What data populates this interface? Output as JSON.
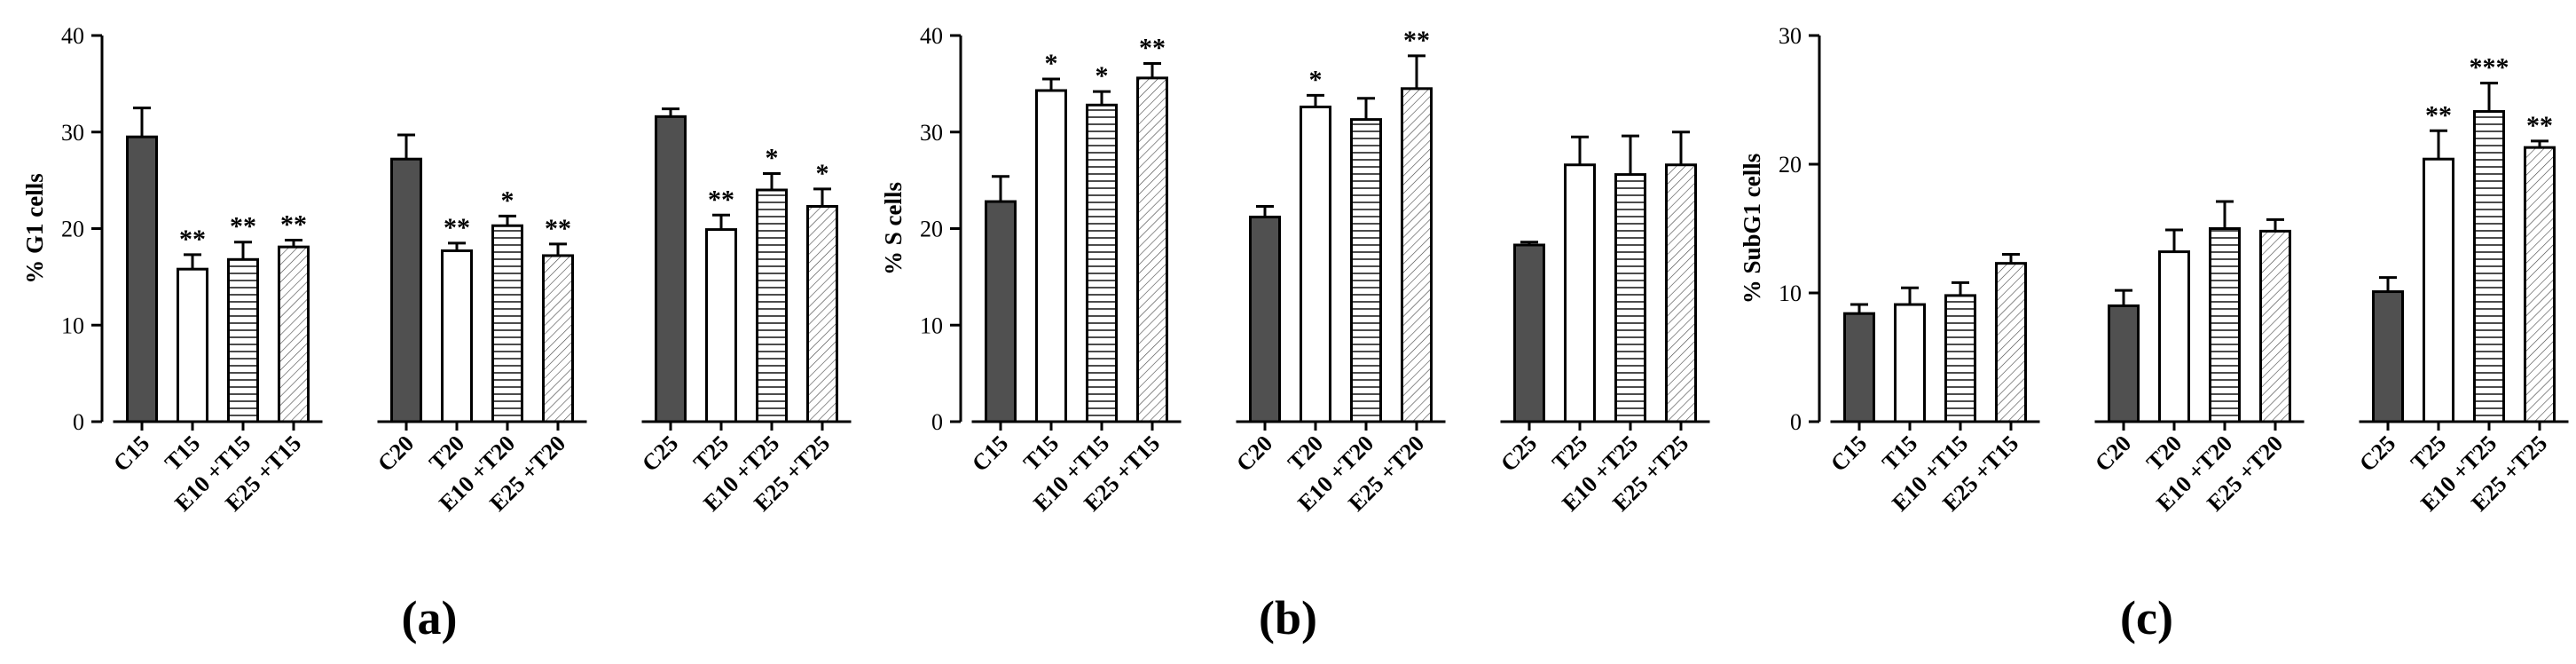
{
  "colors": {
    "control_fill": "#505050",
    "outline": "#000000",
    "background": "#ffffff"
  },
  "chart_data": [
    {
      "panel": "(a)",
      "type": "bar",
      "ylabel": "% G1 cells",
      "ylim": [
        0,
        40
      ],
      "yticks": [
        0,
        10,
        20,
        30,
        40
      ],
      "groups": [
        {
          "categories": [
            "C15",
            "T15",
            "E10 +T15",
            "E25 +T15"
          ],
          "values": [
            29.5,
            15.8,
            16.8,
            18.1
          ],
          "errors": [
            3.0,
            1.5,
            1.8,
            0.7
          ],
          "significance": [
            "",
            "**",
            "**",
            "**"
          ]
        },
        {
          "categories": [
            "C20",
            "T20",
            "E10 +T20",
            "E25 +T20"
          ],
          "values": [
            27.2,
            17.7,
            20.3,
            17.2
          ],
          "errors": [
            2.5,
            0.8,
            1.0,
            1.2
          ],
          "significance": [
            "",
            "**",
            "*",
            "**"
          ]
        },
        {
          "categories": [
            "C25",
            "T25",
            "E10 +T25",
            "E25 +T25"
          ],
          "values": [
            31.6,
            19.9,
            24.0,
            22.3
          ],
          "errors": [
            0.8,
            1.5,
            1.7,
            1.8
          ],
          "significance": [
            "",
            "**",
            "*",
            "*"
          ]
        }
      ],
      "fills": [
        "solid",
        "white",
        "horizontal-lines",
        "diagonal-hatch"
      ]
    },
    {
      "panel": "(b)",
      "type": "bar",
      "ylabel": "% S cells",
      "ylim": [
        0,
        40
      ],
      "yticks": [
        0,
        10,
        20,
        30,
        40
      ],
      "groups": [
        {
          "categories": [
            "C15",
            "T15",
            "E10 +T15",
            "E25 +T15"
          ],
          "values": [
            22.8,
            34.3,
            32.8,
            35.6
          ],
          "errors": [
            2.6,
            1.2,
            1.4,
            1.5
          ],
          "significance": [
            "",
            "*",
            "*",
            "**"
          ]
        },
        {
          "categories": [
            "C20",
            "T20",
            "E10 +T20",
            "E25 +T20"
          ],
          "values": [
            21.2,
            32.6,
            31.3,
            34.5
          ],
          "errors": [
            1.1,
            1.2,
            2.2,
            3.4
          ],
          "significance": [
            "",
            "*",
            "",
            "**"
          ]
        },
        {
          "categories": [
            "C25",
            "T25",
            "E10 +T25",
            "E25 +T25"
          ],
          "values": [
            18.3,
            26.6,
            25.6,
            26.6
          ],
          "errors": [
            0.3,
            2.9,
            4.0,
            3.4
          ],
          "significance": [
            "",
            "",
            "",
            ""
          ]
        }
      ],
      "fills": [
        "solid",
        "white",
        "horizontal-lines",
        "diagonal-hatch"
      ]
    },
    {
      "panel": "(c)",
      "type": "bar",
      "ylabel": "% SubG1 cells",
      "ylim": [
        0,
        30
      ],
      "yticks": [
        0,
        10,
        20,
        30
      ],
      "groups": [
        {
          "categories": [
            "C15",
            "T15",
            "E10 +T15",
            "E25 +T15"
          ],
          "values": [
            8.4,
            9.1,
            9.8,
            12.3
          ],
          "errors": [
            0.7,
            1.3,
            1.0,
            0.7
          ],
          "significance": [
            "",
            "",
            "",
            ""
          ]
        },
        {
          "categories": [
            "C20",
            "T20",
            "E10 +T20",
            "E25 +T20"
          ],
          "values": [
            9.0,
            13.2,
            15.0,
            14.8
          ],
          "errors": [
            1.2,
            1.7,
            2.1,
            0.9
          ],
          "significance": [
            "",
            "",
            "",
            ""
          ]
        },
        {
          "categories": [
            "C25",
            "T25",
            "E10 +T25",
            "E25 +T25"
          ],
          "values": [
            10.1,
            20.4,
            24.1,
            21.3
          ],
          "errors": [
            1.1,
            2.2,
            2.2,
            0.5
          ],
          "significance": [
            "",
            "**",
            "***",
            "**"
          ]
        }
      ],
      "fills": [
        "solid",
        "white",
        "horizontal-lines",
        "diagonal-hatch"
      ]
    }
  ]
}
